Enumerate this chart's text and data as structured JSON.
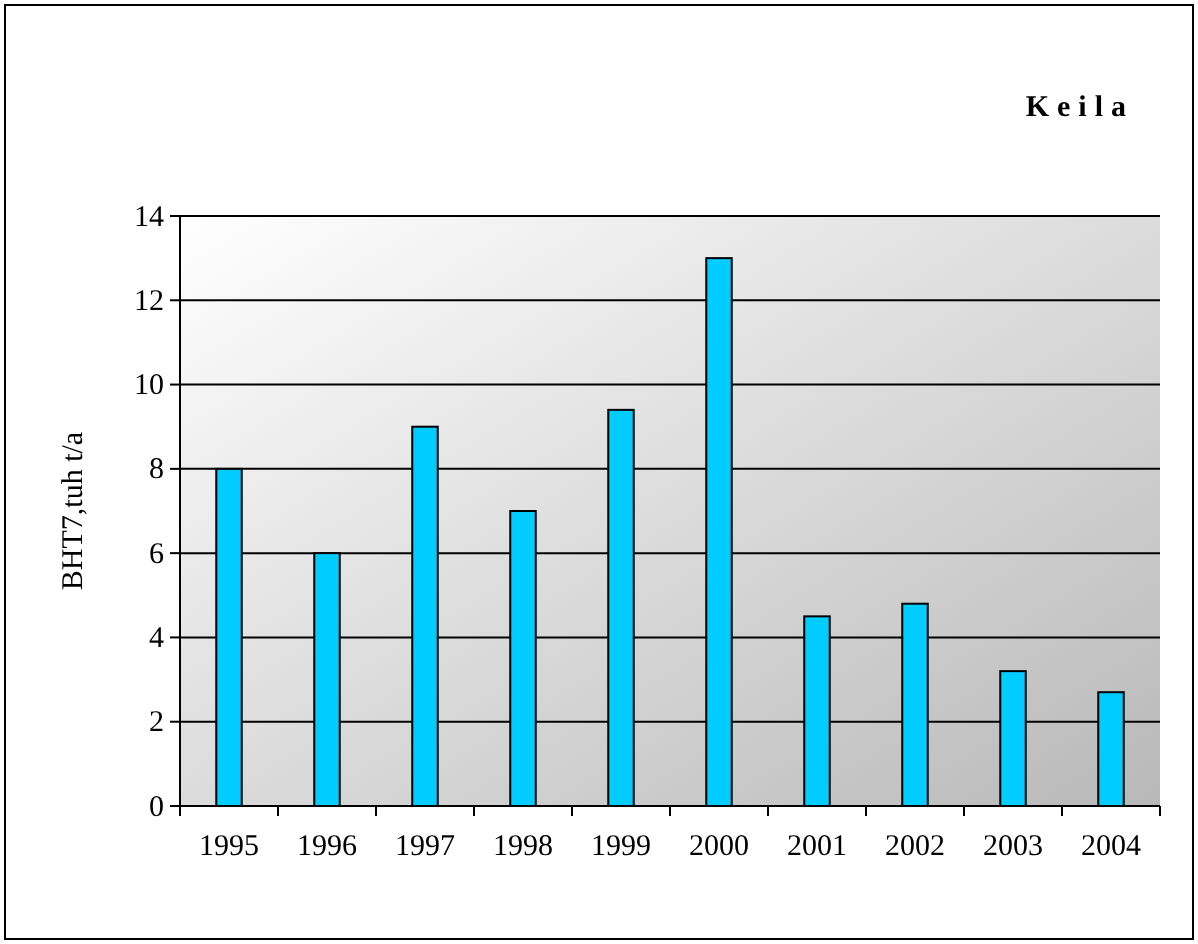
{
  "chart_data": {
    "type": "bar",
    "title": "Keila",
    "ylabel": "BHT7,tuh t/a",
    "categories": [
      "1995",
      "1996",
      "1997",
      "1998",
      "1999",
      "2000",
      "2001",
      "2002",
      "2003",
      "2004"
    ],
    "values": [
      8,
      6,
      9,
      7,
      9.4,
      13,
      4.5,
      4.8,
      3.2,
      2.7
    ],
    "color": "#00ccff",
    "ylim": [
      0,
      14
    ],
    "yticks": [
      0,
      2,
      4,
      6,
      8,
      10,
      12,
      14
    ],
    "grid": "y"
  }
}
